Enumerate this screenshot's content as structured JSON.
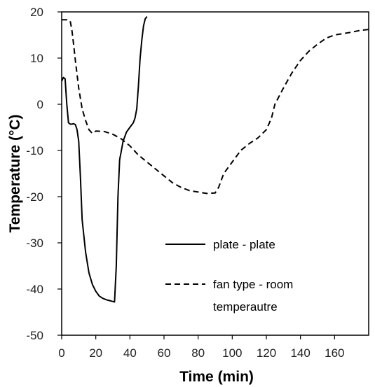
{
  "chart_data": {
    "type": "line",
    "title": "",
    "xlabel": "Time (min)",
    "ylabel": "Temperature (°C)",
    "xlim": [
      0,
      180
    ],
    "ylim": [
      -50,
      20
    ],
    "xticks": [
      0,
      20,
      40,
      60,
      80,
      100,
      120,
      140,
      160
    ],
    "yticks": [
      20,
      10,
      0,
      -10,
      -20,
      -30,
      -40,
      -50
    ],
    "grid": false,
    "legend_position": "center-right, inside plot",
    "series": [
      {
        "name": "plate - plate",
        "line_style": "solid",
        "color": "#000000",
        "x": [
          0,
          1,
          2,
          3,
          4,
          5,
          6,
          7,
          8,
          9,
          10,
          11,
          12,
          14,
          16,
          18,
          20,
          22,
          24,
          26,
          28,
          30,
          31,
          32,
          33,
          34,
          35,
          36,
          38,
          40,
          42,
          43,
          44,
          45,
          46,
          47,
          48,
          49,
          50
        ],
        "y": [
          5,
          5.8,
          5.5,
          0,
          -4,
          -4.3,
          -4.3,
          -4.2,
          -4.4,
          -5.5,
          -8,
          -16,
          -25,
          -32,
          -36.5,
          -39,
          -40.5,
          -41.5,
          -42,
          -42.3,
          -42.5,
          -42.7,
          -42.8,
          -35,
          -20,
          -12,
          -10,
          -8,
          -6,
          -5,
          -4,
          -3,
          -1,
          4,
          10,
          14,
          17,
          18.5,
          19
        ]
      },
      {
        "name": "fan type - room temperautre",
        "line_style": "dashed",
        "color": "#000000",
        "x": [
          0,
          2,
          4,
          5,
          6,
          7,
          8,
          10,
          12,
          14,
          16,
          18,
          20,
          25,
          30,
          35,
          40,
          45,
          50,
          55,
          60,
          65,
          70,
          75,
          80,
          85,
          90,
          92,
          95,
          100,
          105,
          110,
          115,
          120,
          123,
          125,
          130,
          135,
          140,
          145,
          150,
          155,
          160,
          165,
          170,
          175,
          180
        ],
        "y": [
          18.3,
          18.3,
          18.3,
          18,
          16,
          13,
          9.5,
          3.5,
          -1,
          -3.5,
          -5.5,
          -6.3,
          -5.8,
          -5.9,
          -6.5,
          -7.5,
          -9,
          -11,
          -12.5,
          -14,
          -15.5,
          -17,
          -18,
          -18.7,
          -19,
          -19.3,
          -19.2,
          -18,
          -15,
          -12.5,
          -10,
          -8.5,
          -7.3,
          -5.5,
          -3,
          0,
          3.5,
          6.8,
          9.5,
          11.5,
          13,
          14.3,
          15,
          15.3,
          15.6,
          16,
          16.2
        ]
      }
    ]
  },
  "legend": {
    "plate_plate": "plate - plate",
    "fan_line1": "fan type - room",
    "fan_line2": "temperautre"
  }
}
